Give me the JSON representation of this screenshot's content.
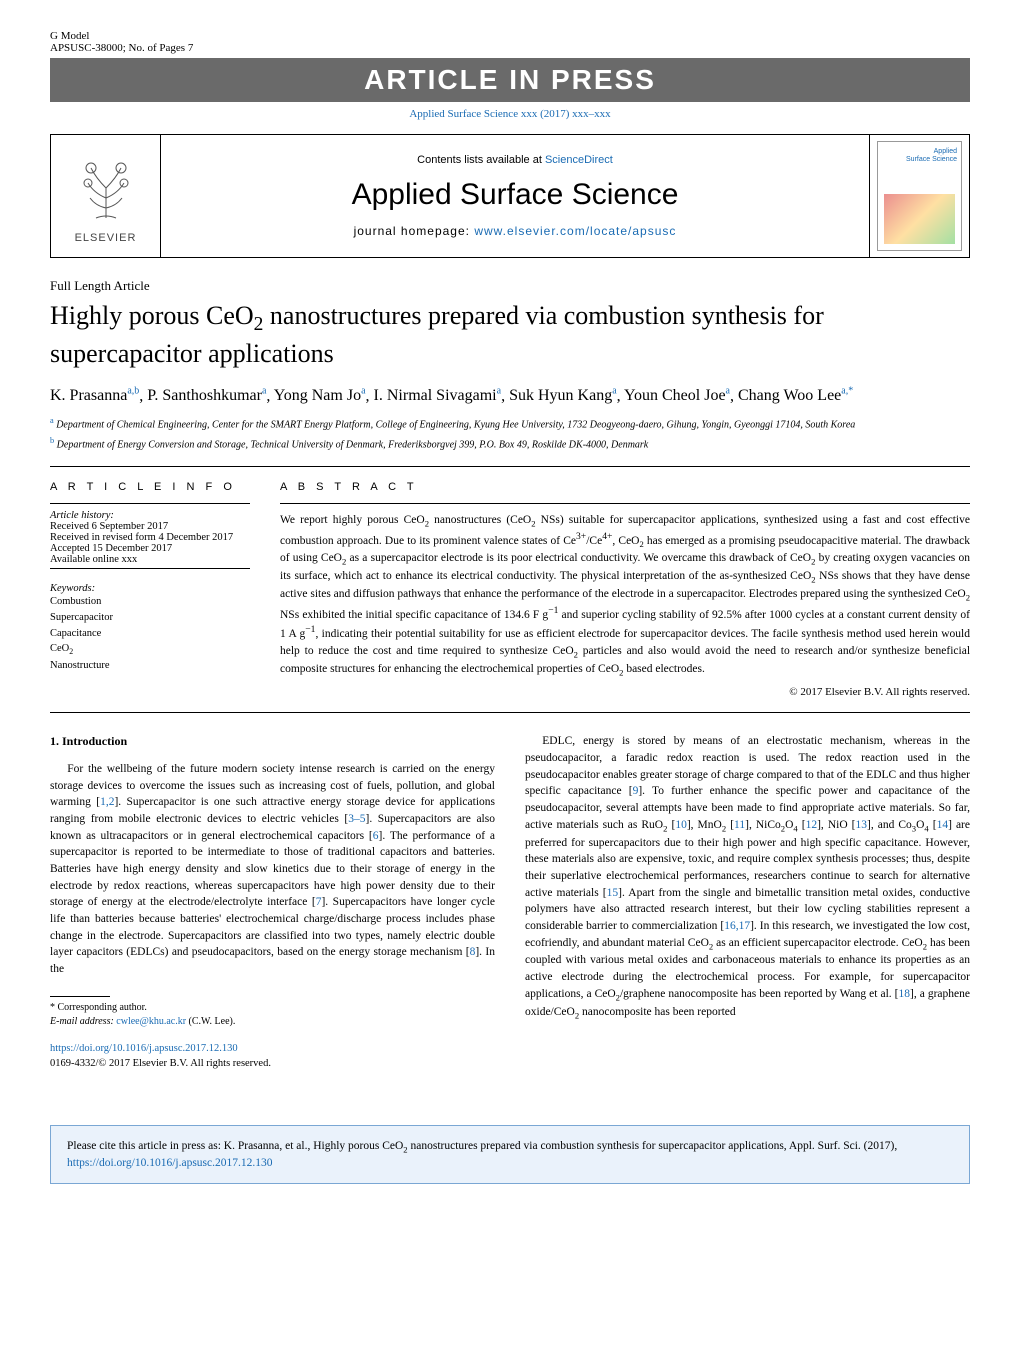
{
  "header": {
    "gmodel": "G Model",
    "docid": "APSUSC-38000;   No. of Pages 7",
    "banner": "ARTICLE IN PRESS",
    "citation": "Applied Surface Science xxx (2017) xxx–xxx"
  },
  "journalBox": {
    "elsevier": "ELSEVIER",
    "contents_prefix": "Contents lists available at ",
    "contents_link": "ScienceDirect",
    "journal_name": "Applied Surface Science",
    "homepage_prefix": "journal homepage: ",
    "homepage_link": "www.elsevier.com/locate/apsusc",
    "cover_title": "Applied\nSurface Science"
  },
  "article": {
    "type": "Full Length Article",
    "title_pre": "Highly porous CeO",
    "title_sub": "2",
    "title_post": " nanostructures prepared via combustion synthesis for supercapacitor applications",
    "authors_html": "K. Prasanna|a,b|, P. Santhoshkumar|a|, Yong Nam Jo|a|, I. Nirmal Sivagami|a|, Suk Hyun Kang|a|, Youn Cheol Joe|a|, Chang Woo Lee|a,*|",
    "affiliations": [
      {
        "sup": "a",
        "text": " Department of Chemical Engineering, Center for the SMART Energy Platform, College of Engineering, Kyung Hee University, 1732 Deogyeong-daero, Gihung, Yongin, Gyeonggi 17104, South Korea"
      },
      {
        "sup": "b",
        "text": " Department of Energy Conversion and Storage, Technical University of Denmark, Frederiksborgvej 399, P.O. Box 49, Roskilde DK-4000, Denmark"
      }
    ]
  },
  "info": {
    "head": "A R T I C L E   I N F O",
    "history_label": "Article history:",
    "history": [
      "Received 6 September 2017",
      "Received in revised form 4 December 2017",
      "Accepted 15 December 2017",
      "Available online xxx"
    ],
    "keywords_label": "Keywords:",
    "keywords": [
      "Combustion",
      "Supercapacitor",
      "Capacitance",
      "CeO2",
      "Nanostructure"
    ]
  },
  "abstract": {
    "head": "A B S T R A C T",
    "text": "We report highly porous CeO2 nanostructures (CeO2 NSs) suitable for supercapacitor applications, synthesized using a fast and cost effective combustion approach. Due to its prominent valence states of Ce3+/Ce4+, CeO2 has emerged as a promising pseudocapacitive material. The drawback of using CeO2 as a supercapacitor electrode is its poor electrical conductivity. We overcame this drawback of CeO2 by creating oxygen vacancies on its surface, which act to enhance its electrical conductivity. The physical interpretation of the as-synthesized CeO2 NSs shows that they have dense active sites and diffusion pathways that enhance the performance of the electrode in a supercapacitor. Electrodes prepared using the synthesized CeO2 NSs exhibited the initial specific capacitance of 134.6 F g−1 and superior cycling stability of 92.5% after 1000 cycles at a constant current density of 1 A g−1, indicating their potential suitability for use as efficient electrode for supercapacitor devices. The facile synthesis method used herein would help to reduce the cost and time required to synthesize CeO2 particles and also would avoid the need to research and/or synthesize beneficial composite structures for enhancing the electrochemical properties of CeO2 based electrodes.",
    "copyright": "© 2017 Elsevier B.V. All rights reserved."
  },
  "body": {
    "section_head": "1.  Introduction",
    "left": "For the wellbeing of the future modern society intense research is carried on the energy storage devices to overcome the issues such as increasing cost of fuels, pollution, and global warming [1,2]. Supercapacitor is one such attractive energy storage device for applications ranging from mobile electronic devices to electric vehicles [3–5]. Supercapacitors are also known as ultracapacitors or in general electrochemical capacitors [6]. The performance of a supercapacitor is reported to be intermediate to those of traditional capacitors and batteries. Batteries have high energy density and slow kinetics due to their storage of energy in the electrode by redox reactions, whereas supercapacitors have high power density due to their storage of energy at the electrode/electrolyte interface [7]. Supercapacitors have longer cycle life than batteries because batteries' electrochemical charge/discharge process includes phase change in the electrode. Supercapacitors are classified into two types, namely electric double layer capacitors (EDLCs) and pseudocapacitors, based on the energy storage mechanism [8]. In the",
    "right": "EDLC, energy is stored by means of an electrostatic mechanism, whereas in the pseudocapacitor, a faradic redox reaction is used. The redox reaction used in the pseudocapacitor enables greater storage of charge compared to that of the EDLC and thus higher specific capacitance [9]. To further enhance the specific power and capacitance of the pseudocapacitor, several attempts have been made to find appropriate active materials. So far, active materials such as RuO2 [10], MnO2 [11], NiCo2O4 [12], NiO [13], and Co3O4 [14] are preferred for supercapacitors due to their high power and high specific capacitance. However, these materials also are expensive, toxic, and require complex synthesis processes; thus, despite their superlative electrochemical performances, researchers continue to search for alternative active materials [15]. Apart from the single and bimetallic transition metal oxides, conductive polymers have also attracted research interest, but their low cycling stabilities represent a considerable barrier to commercialization [16,17]. In this research, we investigated the low cost, ecofriendly, and abundant material CeO2 as an efficient supercapacitor electrode. CeO2 has been coupled with various metal oxides and carbonaceous materials to enhance its properties as an active electrode during the electrochemical process. For example, for supercapacitor applications, a CeO2/graphene nanocomposite has been reported by Wang et al. [18], a graphene oxide/CeO2 nanocomposite has been reported"
  },
  "footnote": {
    "corresp": "* Corresponding author.",
    "email_label": "E-mail address: ",
    "email": "cwlee@khu.ac.kr",
    "email_suffix": " (C.W. Lee)."
  },
  "doi": {
    "url": "https://doi.org/10.1016/j.apsusc.2017.12.130",
    "line2": "0169-4332/© 2017 Elsevier B.V. All rights reserved."
  },
  "citebox": {
    "text_pre": "Please cite this article in press as: K. Prasanna, et al., Highly porous CeO",
    "text_sub": "2",
    "text_post": " nanostructures prepared via combustion synthesis for supercapacitor applications, Appl. Surf. Sci. (2017), ",
    "link": "https://doi.org/10.1016/j.apsusc.2017.12.130"
  },
  "refs_colored": [
    "1,2",
    "3–5",
    "6",
    "7",
    "8",
    "9",
    "10",
    "11",
    "12",
    "13",
    "14",
    "15",
    "16,17",
    "18"
  ]
}
